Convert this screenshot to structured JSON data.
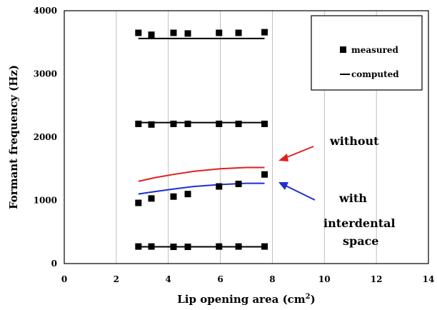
{
  "chart_data": {
    "type": "scatter",
    "xlabel": "Lip opening area (cm",
    "xlabel_sup": "2",
    "xlabel_end": ")",
    "ylabel": "Formant frequency (Hz)",
    "xlim": [
      0,
      14
    ],
    "ylim": [
      0,
      4000
    ],
    "x_ticks": [
      "0",
      "2",
      "4",
      "6",
      "8",
      "10",
      "12",
      "14"
    ],
    "y_ticks": [
      "0",
      "1000",
      "2000",
      "3000",
      "4000"
    ],
    "grid": "vertical",
    "legend_position": "top-right",
    "legend": [
      {
        "label": "measured",
        "marker": "square"
      },
      {
        "label": "computed",
        "marker": "line"
      }
    ],
    "measured": {
      "x": [
        2.85,
        3.35,
        4.2,
        4.75,
        5.95,
        6.7,
        7.7
      ],
      "F1": [
        270,
        270,
        265,
        265,
        270,
        270,
        270
      ],
      "F2_with_interdental_space": [
        960,
        1030,
        1060,
        1100,
        1220,
        1260,
        1410
      ],
      "F3": [
        2210,
        2200,
        2210,
        2210,
        2210,
        2210,
        2210
      ],
      "F4": [
        3650,
        3620,
        3650,
        3640,
        3650,
        3650,
        3660
      ]
    },
    "computed": [
      {
        "name": "F1",
        "color": "#000000",
        "x": [
          2.85,
          7.7
        ],
        "y": [
          265,
          265
        ]
      },
      {
        "name": "F2 without",
        "color": "#e02020",
        "x": [
          2.85,
          3.5,
          4.2,
          5,
          6,
          7,
          7.7
        ],
        "y": [
          1300,
          1360,
          1410,
          1460,
          1500,
          1520,
          1520
        ]
      },
      {
        "name": "F2 with",
        "color": "#1f2fd0",
        "x": [
          2.85,
          3.5,
          4.2,
          5,
          6,
          7,
          7.7
        ],
        "y": [
          1100,
          1140,
          1180,
          1220,
          1250,
          1270,
          1270
        ]
      },
      {
        "name": "F3",
        "color": "#000000",
        "x": [
          2.85,
          7.7
        ],
        "y": [
          2230,
          2230
        ]
      },
      {
        "name": "F4",
        "color": "#000000",
        "x": [
          2.85,
          7.7
        ],
        "y": [
          3560,
          3560
        ]
      }
    ],
    "annotations": [
      {
        "text": "without",
        "arrow_color": "#e02020"
      },
      {
        "text": "with",
        "arrow_color": "#1f2fd0"
      },
      {
        "text": "interdental"
      },
      {
        "text": "space"
      }
    ]
  }
}
